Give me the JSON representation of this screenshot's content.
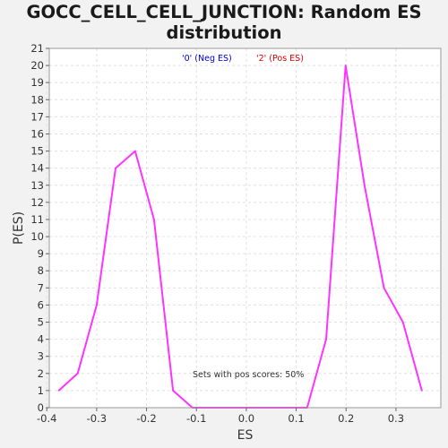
{
  "chart_data": {
    "type": "line",
    "title": "GOCC_CELL_CELL_JUNCTION: Random ES distribution",
    "title_lines": [
      "GOCC_CELL_CELL_JUNCTION: Random ES",
      "distribution"
    ],
    "xlabel": "ES",
    "ylabel": "P(ES)",
    "xlim": [
      -0.395,
      0.39
    ],
    "ylim": [
      0,
      21
    ],
    "xticks": [
      -0.4,
      -0.3,
      -0.2,
      -0.1,
      0.0,
      0.1,
      0.2,
      0.3
    ],
    "xtick_labels": [
      "-0.4",
      "-0.3",
      "-0.2",
      "-0.1",
      "0.0",
      "0.1",
      "0.2",
      "0.3"
    ],
    "yticks": [
      0,
      1,
      2,
      3,
      4,
      5,
      6,
      7,
      8,
      9,
      10,
      11,
      12,
      13,
      14,
      15,
      16,
      17,
      18,
      19,
      20,
      21
    ],
    "grid": true,
    "legend": [
      {
        "label": "'0' (Neg ES)",
        "color": "#0000cc"
      },
      {
        "label": "'2' (Pos ES)",
        "color": "#dd0000"
      }
    ],
    "annotation": "Sets with pos scores: 50%",
    "series": [
      {
        "color": "#ff33ff",
        "x": [
          -0.376,
          -0.338,
          -0.3,
          -0.262,
          -0.223,
          -0.185,
          -0.147,
          -0.108,
          -0.07,
          -0.032,
          0.007,
          0.045,
          0.083,
          0.122,
          0.16,
          0.199,
          0.237,
          0.276,
          0.314,
          0.352
        ],
        "y": [
          1,
          2,
          6,
          14,
          15,
          11,
          1,
          0,
          0,
          0,
          0,
          0,
          0,
          0,
          4,
          20,
          13,
          7,
          5,
          1
        ]
      }
    ]
  }
}
